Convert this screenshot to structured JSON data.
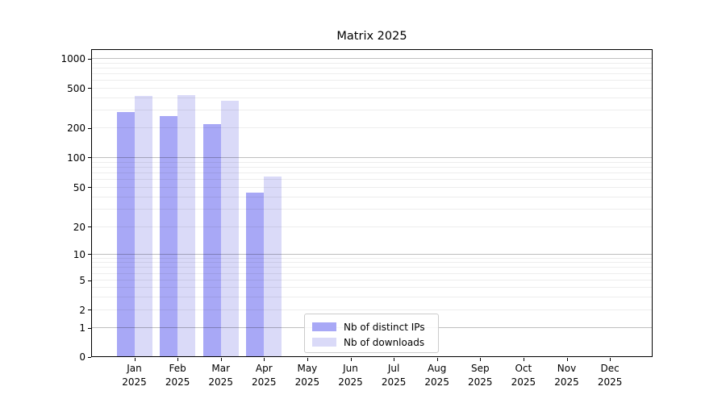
{
  "chart_data": {
    "type": "bar",
    "title": "Matrix 2025",
    "yscale": "symlog",
    "ylim": [
      0,
      1260
    ],
    "grid": "horizontal log major+minor, drawn above bars",
    "legend_position": "lower center",
    "year": "2025",
    "categories": [
      "Jan",
      "Feb",
      "Mar",
      "Apr",
      "May",
      "Jun",
      "Jul",
      "Aug",
      "Sep",
      "Oct",
      "Nov",
      "Dec"
    ],
    "yticks": [
      0,
      1,
      2,
      5,
      10,
      20,
      50,
      100,
      200,
      500,
      1000
    ],
    "series": [
      {
        "name": "Nb of distinct IPs",
        "color": "#a8a8f6",
        "values": [
          290,
          265,
          220,
          44,
          0,
          0,
          0,
          0,
          0,
          0,
          0,
          0
        ]
      },
      {
        "name": "Nb of downloads",
        "color": "#dadaf8",
        "values": [
          420,
          430,
          380,
          65,
          0,
          0,
          0,
          0,
          0,
          0,
          0,
          0
        ]
      }
    ]
  }
}
